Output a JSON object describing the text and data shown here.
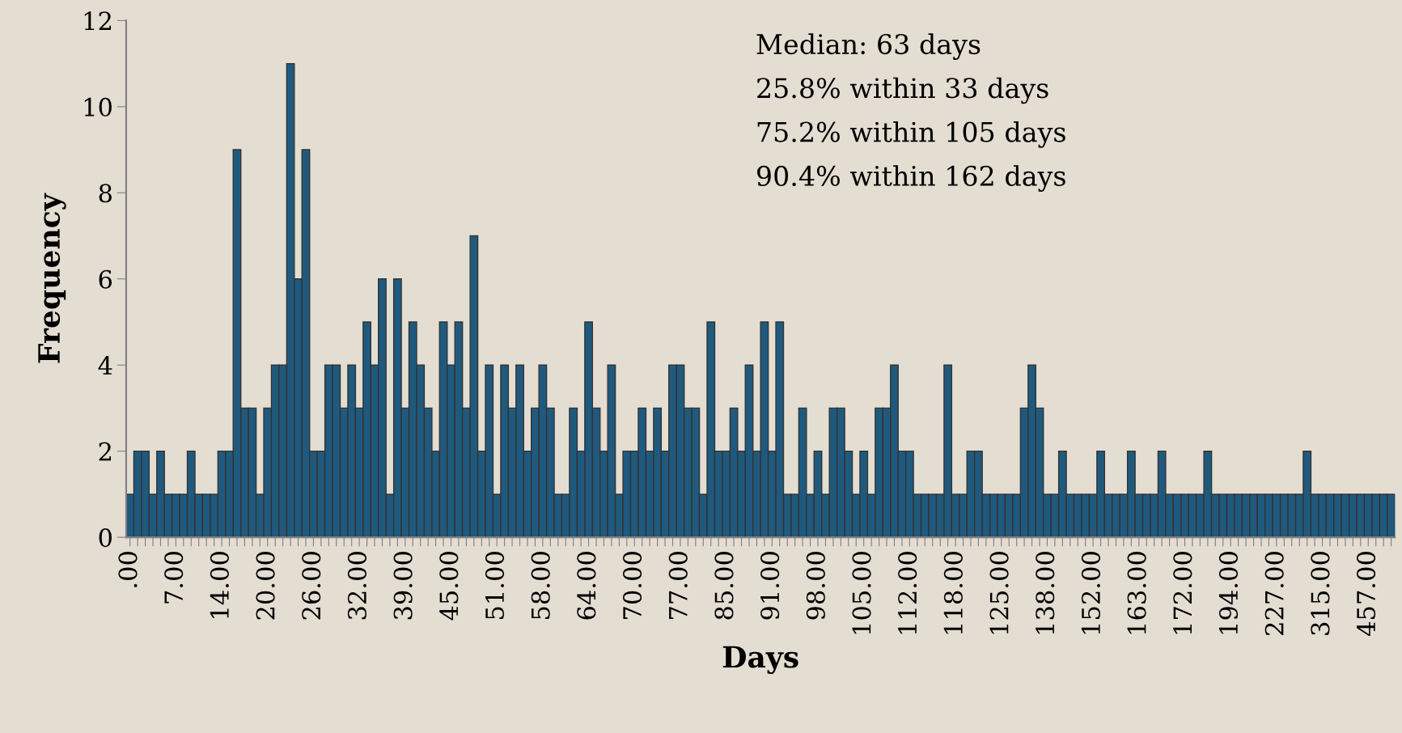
{
  "chart_data": {
    "type": "bar",
    "xlabel": "Days",
    "ylabel": "Frequency",
    "categories": [
      ".00",
      null,
      null,
      null,
      null,
      null,
      "7.00",
      null,
      null,
      null,
      null,
      null,
      "14.00",
      null,
      null,
      null,
      null,
      null,
      "20.00",
      null,
      null,
      null,
      null,
      null,
      "26.00",
      null,
      null,
      null,
      null,
      null,
      "32.00",
      null,
      null,
      null,
      null,
      null,
      "39.00",
      null,
      null,
      null,
      null,
      null,
      "45.00",
      null,
      null,
      null,
      null,
      null,
      "51.00",
      null,
      null,
      null,
      null,
      null,
      "58.00",
      null,
      null,
      null,
      null,
      null,
      "64.00",
      null,
      null,
      null,
      null,
      null,
      "70.00",
      null,
      null,
      null,
      null,
      null,
      "77.00",
      null,
      null,
      null,
      null,
      null,
      "85.00",
      null,
      null,
      null,
      null,
      null,
      "91.00",
      null,
      null,
      null,
      null,
      null,
      "98.00",
      null,
      null,
      null,
      null,
      null,
      "105.00",
      null,
      null,
      null,
      null,
      null,
      "112.00",
      null,
      null,
      null,
      null,
      null,
      "118.00",
      null,
      null,
      null,
      null,
      null,
      "125.00",
      null,
      null,
      null,
      null,
      null,
      "138.00",
      null,
      null,
      null,
      null,
      null,
      "152.00",
      null,
      null,
      null,
      null,
      null,
      "163.00",
      null,
      null,
      null,
      null,
      null,
      "172.00",
      null,
      null,
      null,
      null,
      null,
      "194.00",
      null,
      null,
      null,
      null,
      null,
      "227.00",
      null,
      null,
      null,
      null,
      null,
      "315.00",
      null,
      null,
      null,
      null,
      null,
      "457.00",
      null,
      null,
      null
    ],
    "values": [
      1,
      2,
      2,
      1,
      2,
      1,
      1,
      1,
      2,
      1,
      1,
      1,
      2,
      2,
      9,
      3,
      3,
      1,
      3,
      4,
      4,
      11,
      6,
      9,
      2,
      2,
      4,
      4,
      3,
      4,
      3,
      5,
      4,
      6,
      1,
      6,
      3,
      5,
      4,
      3,
      2,
      5,
      4,
      5,
      3,
      7,
      2,
      4,
      1,
      4,
      3,
      4,
      2,
      3,
      4,
      3,
      1,
      1,
      3,
      2,
      5,
      3,
      2,
      4,
      1,
      2,
      2,
      3,
      2,
      3,
      2,
      4,
      4,
      3,
      3,
      1,
      5,
      2,
      2,
      3,
      2,
      4,
      2,
      5,
      2,
      5,
      1,
      1,
      3,
      1,
      2,
      1,
      3,
      3,
      2,
      1,
      2,
      1,
      3,
      3,
      4,
      2,
      2,
      1,
      1,
      1,
      1,
      4,
      1,
      1,
      2,
      2,
      1,
      1,
      1,
      1,
      1,
      3,
      4,
      3,
      1,
      1,
      2,
      1,
      1,
      1,
      1,
      2,
      1,
      1,
      1,
      2,
      1,
      1,
      1,
      2,
      1,
      1,
      1,
      1,
      1,
      2,
      1,
      1,
      1,
      1,
      1,
      1,
      1,
      1,
      1,
      1,
      1,
      1,
      2,
      1,
      1,
      1,
      1,
      1,
      1,
      1,
      1,
      1,
      1,
      1
    ],
    "color": "#1f5a7e",
    "ylim": [
      0,
      12
    ],
    "yticks": [
      0,
      2,
      4,
      6,
      8,
      10,
      12
    ],
    "grid": false,
    "legend": false,
    "annotations": [
      "Median: 63 days",
      "25.8% within 33 days",
      "75.2% within 105 days",
      "90.4% within 162 days"
    ]
  }
}
